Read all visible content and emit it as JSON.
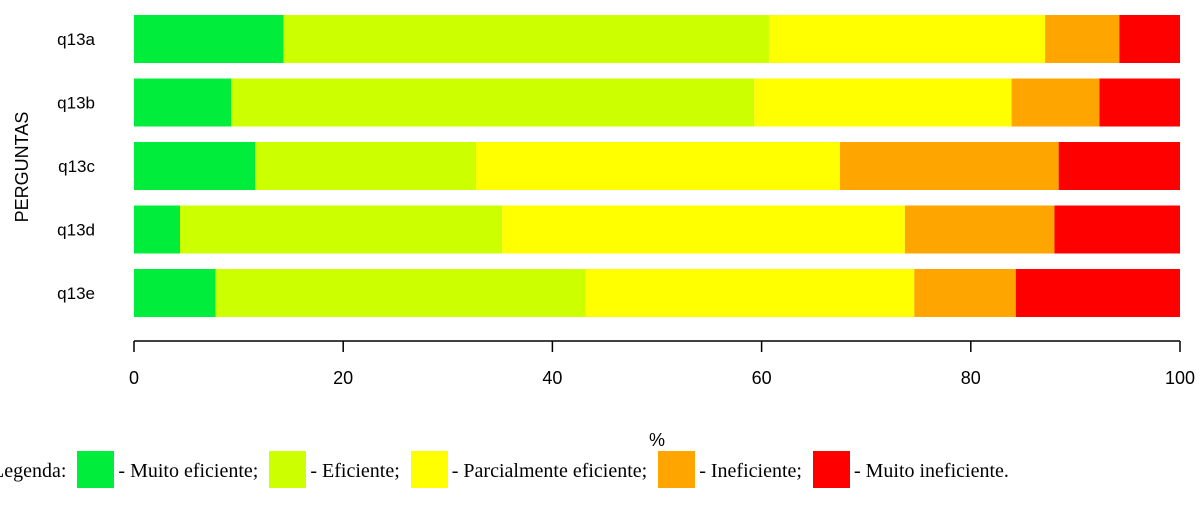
{
  "chart_data": {
    "type": "bar",
    "orientation": "horizontal",
    "stacked": true,
    "categories": [
      "q13a",
      "q13b",
      "q13c",
      "q13d",
      "q13e"
    ],
    "series": [
      {
        "name": "Muito eficiente",
        "color": "#00ee3b",
        "values": [
          14.3,
          9.3,
          11.6,
          4.4,
          7.8
        ]
      },
      {
        "name": "Eficiente",
        "color": "#ccff00",
        "values": [
          46.4,
          50.0,
          21.1,
          30.8,
          35.4
        ]
      },
      {
        "name": "Parcialmente eficiente",
        "color": "#ffff00",
        "values": [
          26.4,
          24.6,
          34.8,
          38.5,
          31.4
        ]
      },
      {
        "name": "Ineficiente",
        "color": "#ffa500",
        "values": [
          7.1,
          8.4,
          20.9,
          14.3,
          9.7
        ]
      },
      {
        "name": "Muito ineficiente",
        "color": "#ff0000",
        "values": [
          5.8,
          7.7,
          11.6,
          12.0,
          15.7
        ]
      }
    ],
    "xlabel": "%",
    "ylabel": "PERGUNTAS",
    "xlim": [
      0,
      100
    ],
    "xticks": [
      0,
      20,
      40,
      60,
      80,
      100
    ],
    "grid": false,
    "legend_position": "bottom"
  },
  "legend": {
    "prefix": "Legenda:",
    "items": [
      {
        "text": "- Muito eficiente;",
        "color": "#00ee3b"
      },
      {
        "text": "- Eficiente;",
        "color": "#ccff00"
      },
      {
        "text": "- Parcialmente eficiente;",
        "color": "#ffff00"
      },
      {
        "text": "- Ineficiente;",
        "color": "#ffa500"
      },
      {
        "text": "- Muito ineficiente.",
        "color": "#ff0000"
      }
    ]
  }
}
